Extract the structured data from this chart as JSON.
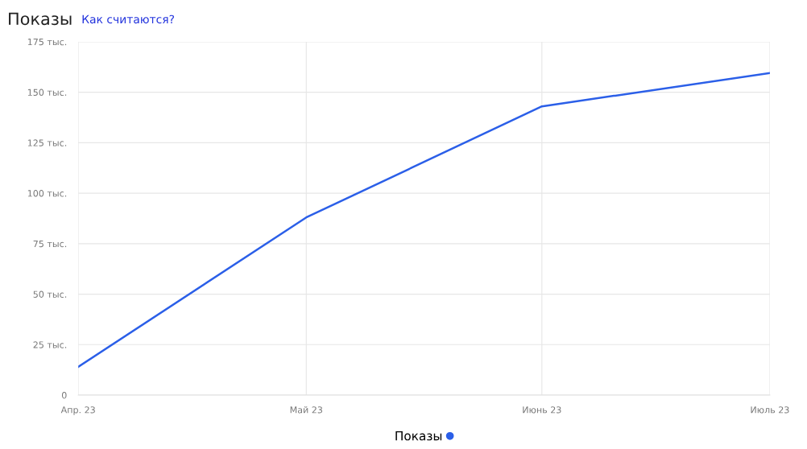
{
  "chart_data": {
    "type": "line",
    "title": "Показы",
    "subtitle": "Как считаются?",
    "x": [
      "2023-04-01",
      "2023-05-01",
      "2023-06-01",
      "2023-07-01"
    ],
    "series": [
      {
        "name": "Показы",
        "color": "#2b5fe8",
        "values": [
          14,
          88,
          143,
          159.5
        ]
      }
    ],
    "xlim": [
      "2023-04-01",
      "2023-07-01"
    ],
    "xticks": [
      {
        "value": "2023-04-01",
        "label": "Апр. 23"
      },
      {
        "value": "2023-05-01",
        "label": "Май 23"
      },
      {
        "value": "2023-06-01",
        "label": "Июнь 23"
      },
      {
        "value": "2023-07-01",
        "label": "Июль 23"
      }
    ],
    "ylim": [
      0,
      175
    ],
    "yticks": [
      0,
      {
        "value": 25,
        "label": "25 тыс."
      },
      {
        "value": 50,
        "label": "50 тыс."
      },
      {
        "value": 75,
        "label": "75 тыс."
      },
      {
        "value": 100,
        "label": "100 тыс."
      },
      {
        "value": 125,
        "label": "125 тыс."
      },
      {
        "value": 150,
        "label": "150 тыс."
      },
      {
        "value": 175,
        "label": "175 тыс."
      }
    ],
    "grid": true,
    "legend": "bottom",
    "marker": "none",
    "line_style": "solid"
  }
}
